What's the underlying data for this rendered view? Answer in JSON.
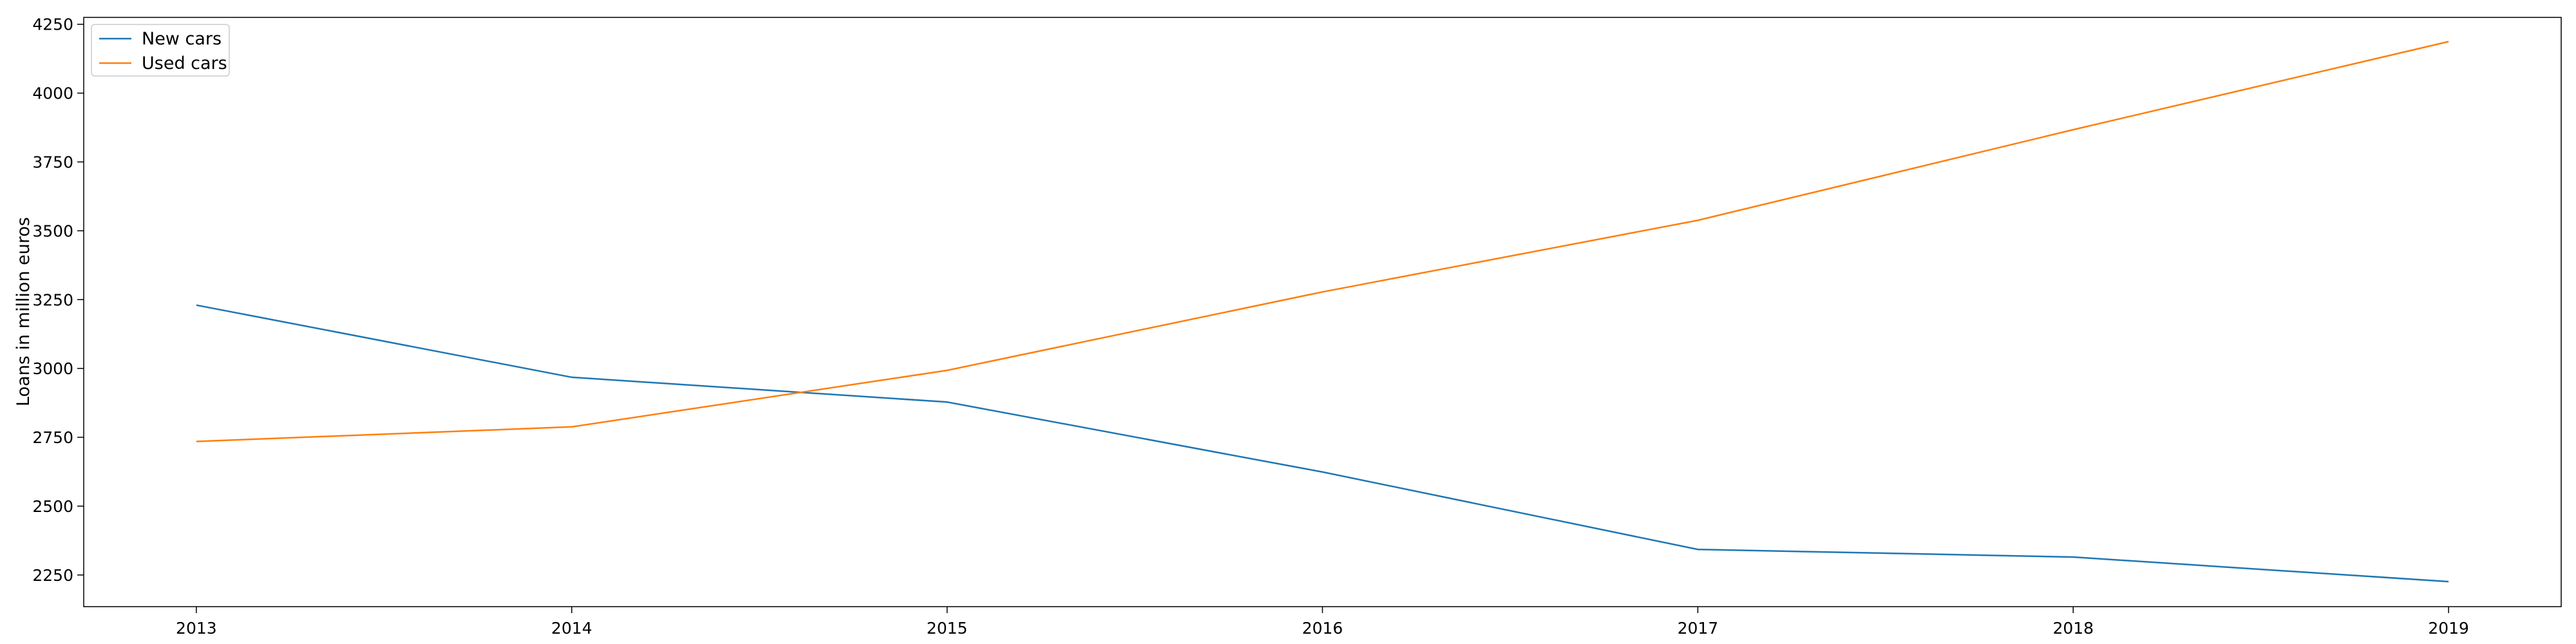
{
  "chart_data": {
    "type": "line",
    "title": "",
    "xlabel": "",
    "ylabel": "Loans in million euros",
    "x": [
      "2013",
      "2014",
      "2015",
      "2016",
      "2017",
      "2018",
      "2019"
    ],
    "xlim": [
      2012.7,
      2019.3
    ],
    "ylim": [
      2135,
      4275
    ],
    "yticks": [
      2250,
      2500,
      2750,
      3000,
      3250,
      3500,
      3750,
      4000,
      4250
    ],
    "grid": false,
    "legend_position": "top-left",
    "series": [
      {
        "name": "New cars",
        "color": "#1f77b4",
        "values": [
          3230,
          2968,
          2878,
          2624,
          2343,
          2315,
          2226
        ]
      },
      {
        "name": "Used cars",
        "color": "#ff7f0e",
        "values": [
          2735,
          2788,
          2993,
          3278,
          3538,
          3867,
          4187
        ]
      }
    ]
  }
}
